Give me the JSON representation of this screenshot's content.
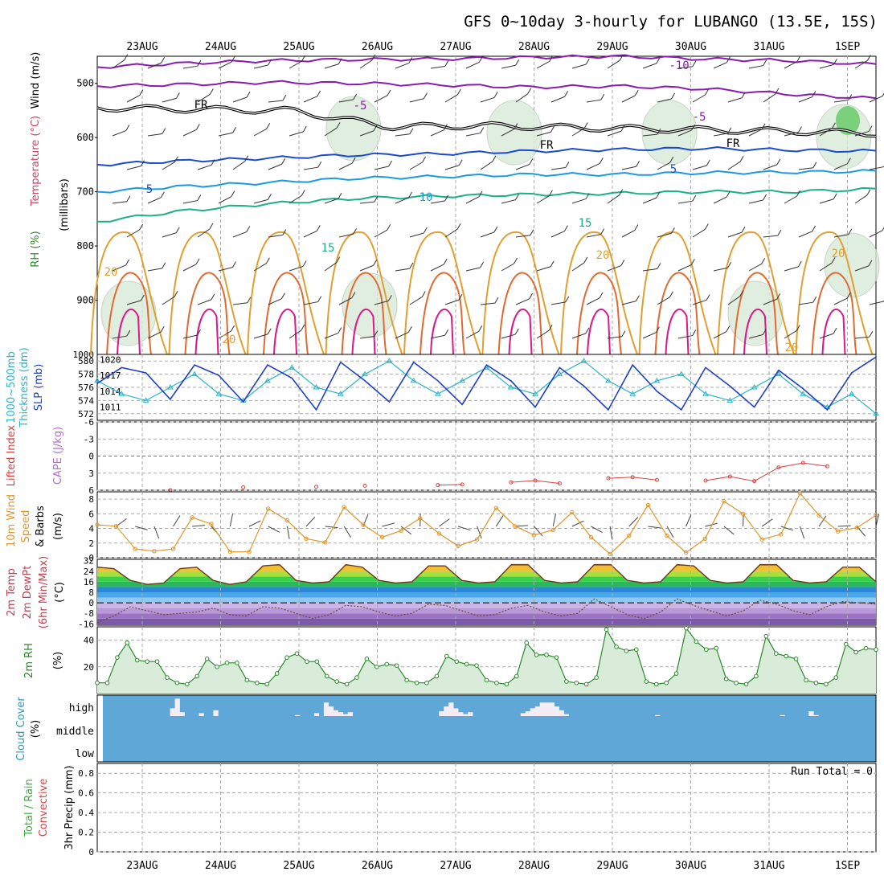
{
  "title": "GFS 0~10day 3-hourly for LUBANGO (13.5E, 15S)",
  "colors": {
    "cloud_bg": "#5fa7d6",
    "rh_fill": "#d9ecd9",
    "slp": "#1f3fc8",
    "thickness": "#2ab4c8",
    "wind_speed": "#e0962a",
    "lifted": "#d84040"
  },
  "chart_data": [
    {
      "type": "line",
      "name": "upper-air cross section",
      "ylabel_parts": [
        "RH (%)",
        "Temperature (°C)",
        "Wind (m/s)",
        "(millibars)"
      ],
      "y_ticks": [
        500,
        600,
        700,
        800,
        900
      ],
      "ylim": [
        1000,
        450
      ],
      "x_ticks": [
        "23AUG",
        "24AUG",
        "25AUG",
        "26AUG",
        "27AUG",
        "28AUG",
        "29AUG",
        "30AUG",
        "31AUG",
        "1SEP"
      ],
      "contour_labels": [
        "-10",
        "-5",
        "-5",
        "FR",
        "FR",
        "FR",
        "5",
        "5",
        "10",
        "15",
        "15",
        "20",
        "20",
        "20",
        "20",
        "20"
      ],
      "freezing_level_mb": [
        545,
        548,
        550,
        580,
        578,
        582,
        585,
        588,
        592
      ],
      "isotherms": [
        {
          "temp_c": -10,
          "pressure_mb": [
            470,
            463,
            458,
            456,
            455,
            452,
            450,
            455,
            458,
            465
          ]
        },
        {
          "temp_c": -5,
          "pressure_mb": [
            505,
            502,
            498,
            500,
            503,
            507,
            505,
            510,
            520,
            528
          ]
        },
        {
          "temp_c": 5,
          "pressure_mb": [
            650,
            643,
            638,
            632,
            630,
            625,
            622,
            620,
            623,
            625
          ]
        },
        {
          "temp_c": 10,
          "pressure_mb": [
            700,
            690,
            683,
            675,
            672,
            668,
            668,
            665,
            664,
            662
          ]
        },
        {
          "temp_c": 15,
          "pressure_mb": [
            755,
            735,
            722,
            712,
            708,
            705,
            703,
            700,
            700,
            695
          ]
        }
      ]
    },
    {
      "type": "line",
      "name": "SLP and 1000-500mb thickness",
      "series": [
        {
          "name": "SLP (mb)",
          "values": [
            1015.5,
            1018.5,
            1017.5,
            1012.5,
            1019,
            1017,
            1012,
            1019,
            1016.5,
            1010.5,
            1019.5,
            1016,
            1012,
            1019.5,
            1016,
            1011.5,
            1019,
            1016,
            1011,
            1018.5,
            1015,
            1010.5,
            1019,
            1014,
            1010.5,
            1018.5,
            1015,
            1011,
            1018,
            1014.5,
            1010.5,
            1017.5,
            1020.5
          ]
        },
        {
          "name": "1000~500mb Thickness (dm)",
          "values": [
            577,
            575,
            574,
            576,
            578,
            575,
            574,
            577,
            579,
            576,
            575,
            578,
            580,
            577,
            575,
            577,
            579,
            576,
            575,
            578,
            580,
            577,
            575,
            577,
            578,
            575,
            574,
            576,
            578,
            575,
            573,
            575,
            572
          ]
        }
      ],
      "y_ticks_left": [
        572,
        574,
        576,
        578,
        580
      ],
      "y_ticks_right": [
        1011,
        1014,
        1017,
        1020
      ],
      "ylim_left": [
        571,
        581
      ],
      "ylim_right": [
        1008.5,
        1021
      ]
    },
    {
      "type": "line",
      "name": "Lifted Index and CAPE",
      "ylabel_parts": [
        "Lifted Index",
        "CAPE (J/kg)"
      ],
      "y_ticks": [
        "-6",
        "-3",
        "0",
        "3",
        "6"
      ],
      "ylim": [
        -6,
        6
      ],
      "series": [
        {
          "name": "Lifted Index",
          "values": [
            null,
            null,
            null,
            6,
            null,
            null,
            5.5,
            null,
            null,
            5.4,
            null,
            5.2,
            null,
            null,
            5.1,
            5.0,
            null,
            4.6,
            4.3,
            4.8,
            null,
            3.9,
            3.7,
            4.2,
            null,
            4.3,
            3.6,
            4.4,
            2.0,
            1.2,
            1.8,
            null,
            null
          ]
        }
      ]
    },
    {
      "type": "line",
      "name": "10m wind speed",
      "ylabel_parts": [
        "10m Wind",
        "Speed",
        "& Barbs",
        "(m/s)"
      ],
      "y_ticks": [
        0,
        2,
        4,
        6,
        8
      ],
      "ylim": [
        0,
        9
      ],
      "series": [
        {
          "name": "10m Wind Speed",
          "values": [
            4.5,
            4.3,
            1.2,
            0.9,
            1.2,
            5.5,
            4.6,
            0.8,
            0.8,
            6.7,
            5.1,
            2.6,
            2.1,
            6.9,
            4.5,
            2.8,
            3.7,
            5.4,
            3.3,
            1.6,
            2.5,
            6.8,
            4.3,
            3.1,
            3.8,
            6.2,
            2.8,
            0.5,
            3.0,
            7.2,
            3.0,
            0.7,
            2.6,
            7.7,
            6.0,
            2.5,
            3.2,
            8.8,
            5.8,
            3.6,
            4.1,
            5.8
          ]
        }
      ]
    },
    {
      "type": "area",
      "name": "2m temperature and dew point",
      "ylabel_parts": [
        "2m Temp",
        "2m DewPt",
        "(6hr Min/Max)",
        "(°C)"
      ],
      "y_ticks": [
        -16,
        -8,
        0,
        8,
        16,
        24,
        32
      ],
      "ylim": [
        -17,
        33
      ],
      "series": [
        {
          "name": "2m Temp",
          "values": [
            27,
            26,
            17,
            14,
            15,
            26,
            27,
            17,
            14,
            16,
            28,
            29,
            17,
            15,
            16,
            29,
            27,
            17,
            15,
            16,
            28,
            28,
            17,
            15,
            16,
            29,
            29,
            17,
            15,
            16,
            29,
            29,
            17,
            15,
            16,
            29,
            28,
            17,
            15,
            16,
            29,
            29,
            17,
            15,
            16,
            27,
            27,
            16
          ]
        },
        {
          "name": "2m DewPt",
          "values": [
            -15,
            -10,
            -3,
            -6,
            -9,
            -8,
            -7,
            -4,
            -9,
            -10,
            -3,
            -4,
            -8,
            -12,
            -9,
            -2,
            -3,
            -7,
            -10,
            -8,
            -1,
            -2,
            -6,
            -10,
            -9,
            -4,
            -2,
            -7,
            -10,
            -8,
            3,
            -3,
            -9,
            -12,
            -7,
            3,
            -2,
            -6,
            -10,
            -6,
            2,
            -1,
            -6,
            -9,
            -3,
            1,
            0,
            -1
          ]
        }
      ]
    },
    {
      "type": "area",
      "name": "2m relative humidity",
      "ylabel_parts": [
        "2m RH",
        "(%)"
      ],
      "y_ticks": [
        20,
        40
      ],
      "ylim": [
        0,
        50
      ],
      "series": [
        {
          "name": "2m RH",
          "values": [
            8,
            8,
            27,
            38,
            25,
            24,
            24,
            12,
            8,
            7,
            13,
            26,
            20,
            23,
            23,
            10,
            8,
            7,
            15,
            27,
            30,
            24,
            24,
            13,
            9,
            7,
            12,
            26,
            20,
            22,
            21,
            10,
            8,
            8,
            13,
            28,
            24,
            22,
            21,
            10,
            8,
            7,
            13,
            38,
            29,
            29,
            27,
            9,
            8,
            7,
            12,
            48,
            35,
            32,
            33,
            9,
            7,
            8,
            15,
            49,
            39,
            33,
            34,
            11,
            8,
            7,
            13,
            43,
            30,
            28,
            26,
            10,
            8,
            7,
            12,
            37,
            31,
            34,
            33
          ]
        }
      ]
    },
    {
      "type": "bar",
      "name": "cloud cover",
      "ylabel_parts": [
        "Cloud Cover",
        "(%)"
      ],
      "y_tick_labels": [
        "high",
        "middle",
        "low"
      ],
      "series": [
        {
          "name": "high",
          "values": [
            0,
            0,
            0,
            0,
            0,
            0,
            0,
            0,
            0,
            0,
            0,
            0,
            0,
            0,
            40,
            90,
            20,
            0,
            0,
            0,
            15,
            0,
            0,
            30,
            0,
            0,
            0,
            0,
            0,
            0,
            0,
            0,
            0,
            0,
            0,
            0,
            0,
            0,
            0,
            0,
            5,
            0,
            0,
            0,
            15,
            0,
            70,
            50,
            30,
            20,
            10,
            20,
            0,
            0,
            0,
            0,
            0,
            0,
            0,
            0,
            0,
            0,
            0,
            0,
            0,
            0,
            0,
            0,
            0,
            0,
            25,
            50,
            70,
            40,
            20,
            10,
            20,
            0,
            0,
            0,
            0,
            0,
            0,
            0,
            0,
            0,
            0,
            15,
            25,
            40,
            50,
            70,
            70,
            70,
            50,
            30,
            10,
            0,
            0,
            0,
            0,
            0,
            0,
            0,
            0,
            0,
            0,
            0,
            0,
            0,
            0,
            0,
            0,
            0,
            0,
            5,
            0,
            0,
            0,
            0,
            0,
            0,
            0,
            0,
            0,
            0,
            0,
            0,
            0,
            0,
            0,
            0,
            0,
            0,
            0,
            0,
            0,
            0,
            0,
            0,
            0,
            5,
            0,
            0,
            0,
            0,
            0,
            25,
            5,
            0,
            0,
            0,
            0,
            0,
            0,
            0,
            0,
            0,
            0,
            0,
            0
          ]
        },
        {
          "name": "middle",
          "values": [
            0,
            0,
            0,
            0,
            0,
            0,
            0,
            0,
            0,
            0,
            0,
            0,
            0,
            0,
            0,
            0,
            0,
            0,
            0,
            0,
            0,
            0,
            0,
            0,
            0,
            0,
            0,
            0,
            0,
            0,
            0,
            0,
            0,
            0,
            0,
            0,
            0,
            0,
            0,
            0,
            0,
            0,
            0,
            0,
            0,
            0,
            0,
            0,
            0,
            0,
            0,
            0,
            0,
            0,
            0,
            0,
            0,
            0,
            0,
            0,
            0,
            0,
            0,
            0,
            0,
            0,
            0,
            0,
            0,
            0,
            0,
            0,
            0,
            0,
            0,
            0,
            0,
            0,
            0,
            0,
            0,
            0,
            0,
            0,
            0,
            0,
            0,
            0,
            0,
            0,
            0,
            0,
            0,
            0,
            0,
            0,
            0,
            0,
            0,
            0,
            0,
            0,
            0,
            0,
            0,
            0,
            0,
            0,
            0,
            0,
            0,
            0,
            0,
            0,
            0,
            0,
            0,
            0,
            0,
            0,
            0,
            0,
            0,
            0,
            0,
            0,
            0,
            0,
            0,
            0,
            0,
            0,
            0,
            0,
            0,
            0,
            0,
            0,
            0,
            0,
            0,
            0,
            0,
            0,
            0,
            0,
            0,
            0,
            0,
            0,
            0,
            0,
            0,
            0,
            0,
            0,
            0,
            0,
            0,
            0,
            0,
            0,
            0,
            0,
            8,
            10,
            5,
            5,
            0,
            0
          ]
        },
        {
          "name": "low",
          "values": []
        }
      ]
    },
    {
      "type": "bar",
      "name": "3hr precipitation",
      "ylabel_parts": [
        "Total / Rain",
        "Convective",
        "3hr Precip (mm)"
      ],
      "y_ticks": [
        "0",
        "0.2",
        "0.4",
        "0.6",
        "0.8"
      ],
      "ylim": [
        0,
        0.9
      ],
      "annotation": "Run Total = 0",
      "x_ticks": [
        "23AUG",
        "24AUG",
        "25AUG",
        "26AUG",
        "27AUG",
        "28AUG",
        "29AUG",
        "30AUG",
        "31AUG",
        "1SEP"
      ],
      "series": [
        {
          "name": "Total",
          "values": []
        }
      ]
    }
  ]
}
